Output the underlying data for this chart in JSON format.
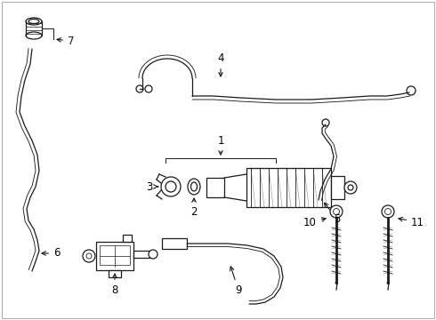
{
  "background_color": "#ffffff",
  "line_color": "#1a1a1a",
  "text_color": "#000000",
  "figsize": [
    4.9,
    3.6
  ],
  "dpi": 100,
  "border_color": "#cccccc"
}
